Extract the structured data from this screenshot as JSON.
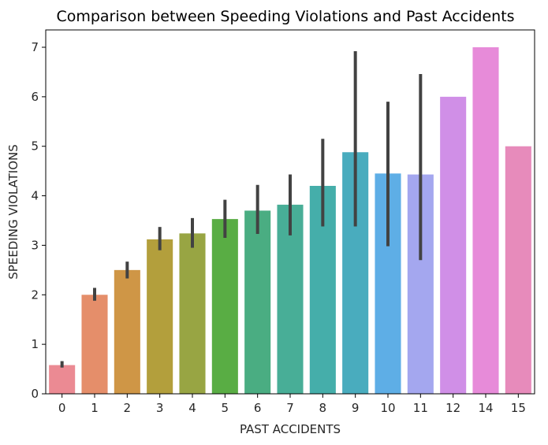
{
  "chart_data": {
    "type": "bar",
    "title": "Comparison between Speeding Violations and Past Accidents",
    "xlabel": "PAST ACCIDENTS",
    "ylabel": "SPEEDING VIOLATIONS",
    "ylim": [
      0,
      7.35
    ],
    "yticks": [
      "0",
      "1",
      "2",
      "3",
      "4",
      "5",
      "6",
      "7"
    ],
    "grid": false,
    "categories": [
      "0",
      "1",
      "2",
      "3",
      "4",
      "5",
      "6",
      "7",
      "8",
      "9",
      "10",
      "11",
      "12",
      "14",
      "15"
    ],
    "values": [
      0.58,
      2.0,
      2.5,
      3.12,
      3.24,
      3.53,
      3.7,
      3.82,
      4.2,
      4.88,
      4.45,
      4.43,
      6.0,
      7.0,
      5.0
    ],
    "error_low": [
      0.53,
      1.88,
      2.33,
      2.9,
      2.95,
      3.15,
      3.23,
      3.2,
      3.38,
      3.38,
      2.98,
      2.7,
      null,
      null,
      null
    ],
    "error_high": [
      0.66,
      2.14,
      2.67,
      3.37,
      3.55,
      3.92,
      4.22,
      4.43,
      5.15,
      6.92,
      5.9,
      6.46,
      null,
      null,
      null
    ],
    "colors": [
      "#eb8a93",
      "#e58e6a",
      "#cf9646",
      "#b39f3c",
      "#98a543",
      "#59ad44",
      "#4aad82",
      "#48ae97",
      "#45aeaa",
      "#49acbe",
      "#5eaee6",
      "#a4a7ef",
      "#d08fe7",
      "#e78bd9",
      "#e78bbb"
    ]
  }
}
